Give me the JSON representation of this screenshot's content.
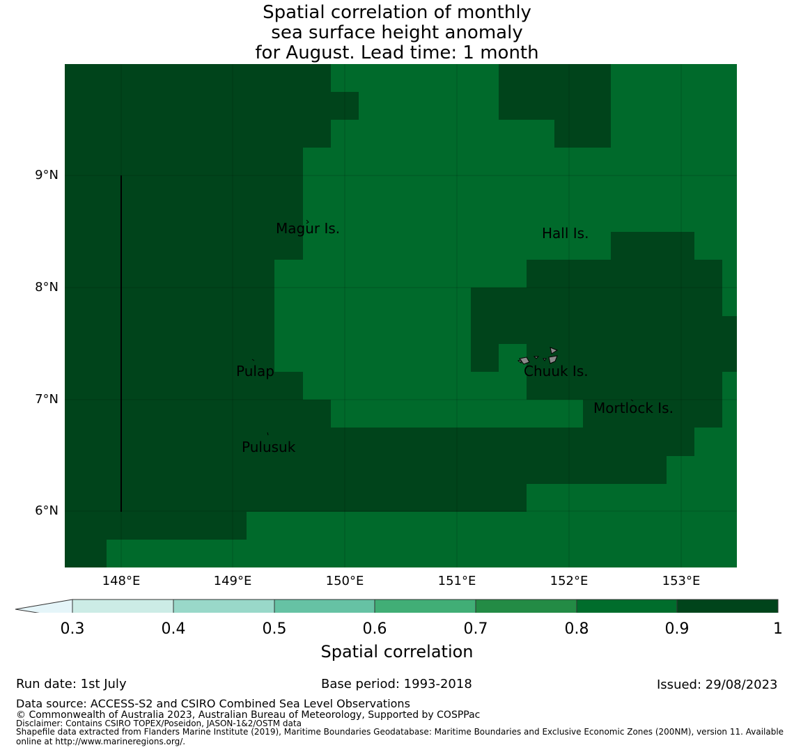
{
  "title_lines": [
    "Spatial correlation of monthly",
    "sea surface height anomaly",
    "for August. Lead time: 1 month"
  ],
  "map": {
    "lat_ticks": [
      "9°N",
      "8°N",
      "7°N",
      "6°N"
    ],
    "lon_ticks": [
      "148°E",
      "149°E",
      "150°E",
      "151°E",
      "152°E",
      "153°E"
    ],
    "colors": {
      "band_0_8_0_9": "#006a2b",
      "band_0_9_1": "#00441b",
      "land": "#8a8a8a"
    },
    "places": [
      {
        "name": "Magur Is."
      },
      {
        "name": "Hall Is."
      },
      {
        "name": "Pulap"
      },
      {
        "name": "Chuuk Is."
      },
      {
        "name": "Mortlock Is."
      },
      {
        "name": "Pulusuk"
      }
    ]
  },
  "colorbar": {
    "ticks": [
      "0.3",
      "0.4",
      "0.5",
      "0.6",
      "0.7",
      "0.8",
      "0.9",
      "1"
    ],
    "colors": [
      "#e5f5f9",
      "#ccece6",
      "#99d8c9",
      "#66c2a4",
      "#41ae76",
      "#238b45",
      "#006d2c",
      "#00441b"
    ],
    "label": "Spatial correlation"
  },
  "footer": {
    "run_date": "Run date: 1st July",
    "base_period": "Base period: 1993-2018",
    "issued": "Issued: 29/08/2023",
    "data_source": "Data source: ACCESS-S2 and CSIRO Combined Sea Level Observations",
    "copyright": "© Commonwealth of Australia 2023, Australian Bureau of Meteorology, Supported by COSPPac",
    "disclaimer": "Disclaimer: Contains CSIRO TOPEX/Poseidon, JASON-1&2/OSTM data",
    "shapefile_line1": "Shapefile data extracted from Flanders Marine Institute (2019), Maritime Boundaries Geodatabase: Maritime Boundaries and Exclusive Economic Zones (200NM), version 11. Available",
    "shapefile_line2": "online at http://www.marineregions.org/."
  }
}
